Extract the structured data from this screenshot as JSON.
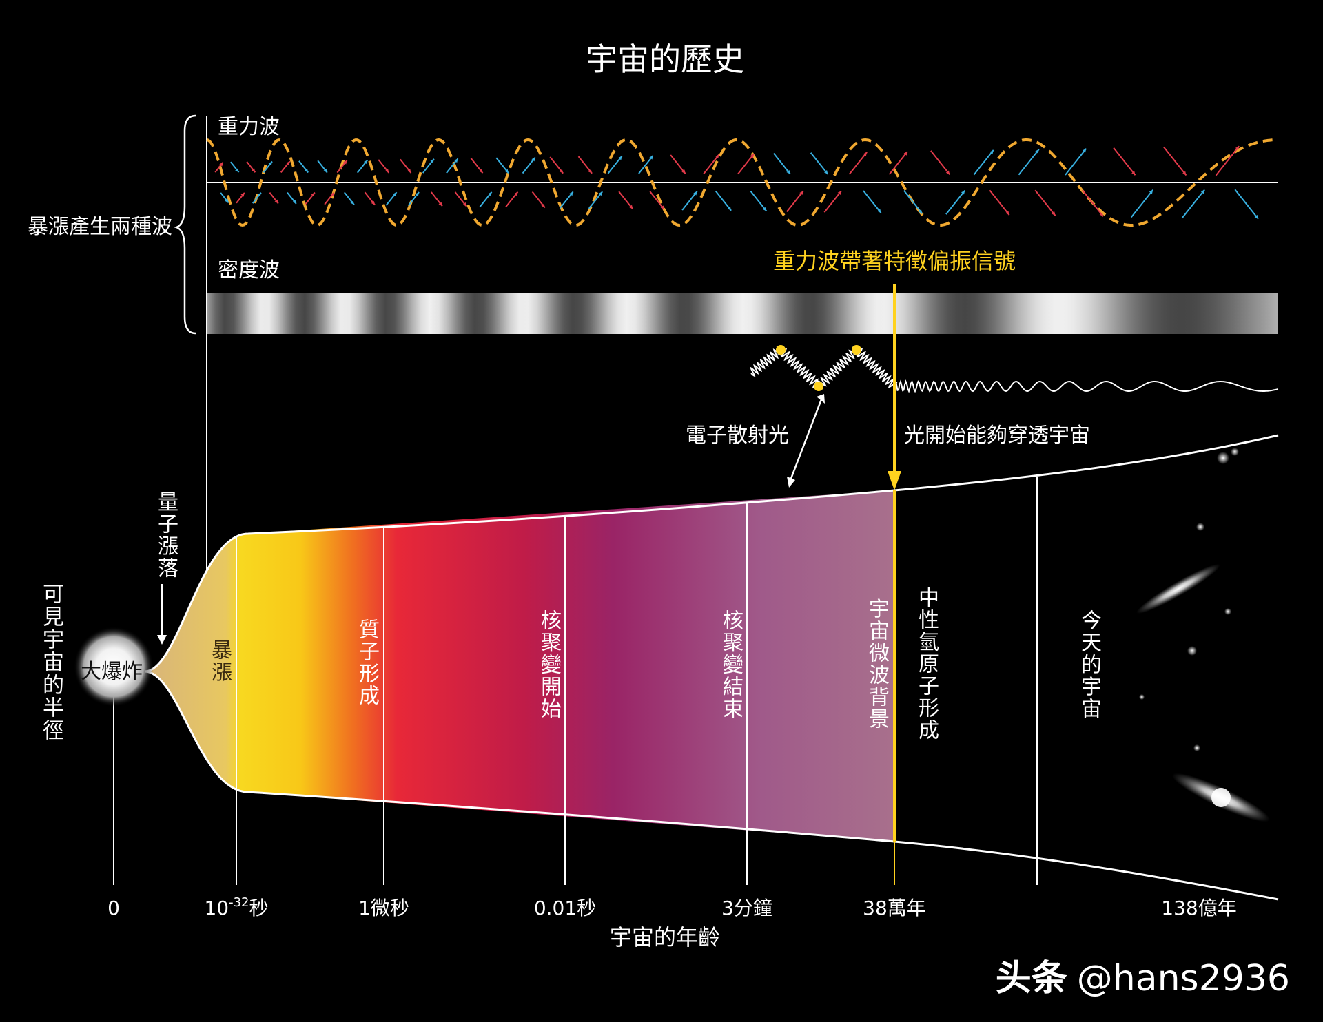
{
  "title": "宇宙的歷史",
  "brace_label": "暴漲產生兩種波",
  "wave_labels": {
    "gravity": "重力波",
    "density": "密度波"
  },
  "polarization_note": "重力波帶著特徵偏振信號",
  "scatter_note": "電子散射光",
  "transparent_note": "光開始能夠穿透宇宙",
  "radius_label": "可見宇宙的半徑",
  "quantum_label": "量子漲落",
  "big_bang_label": "大爆炸",
  "eras": [
    {
      "id": "inflation",
      "label": "暴漲"
    },
    {
      "id": "quark",
      "label": "質子形成"
    },
    {
      "id": "nucleo-start",
      "label": "核聚變開始"
    },
    {
      "id": "nucleo-end",
      "label": "核聚變結束"
    },
    {
      "id": "cmb",
      "label": "宇宙微波背景"
    },
    {
      "id": "neutral",
      "label": "中性氫原子形成"
    },
    {
      "id": "today",
      "label": "今天的宇宙"
    }
  ],
  "time_ticks": [
    "0",
    "10",
    "-32",
    "秒",
    "1微秒",
    "0.01秒",
    "3分鐘",
    "38萬年",
    "138億年"
  ],
  "xlabel": "宇宙的年齡",
  "watermark": {
    "brand": "头条",
    "handle": "@hans2936"
  },
  "colors": {
    "background": "#000000",
    "gravity_wave": "#f0a830",
    "pol_red": "#e23a4a",
    "pol_blue": "#38b0e0",
    "highlight_yellow": "#ffd21f"
  }
}
